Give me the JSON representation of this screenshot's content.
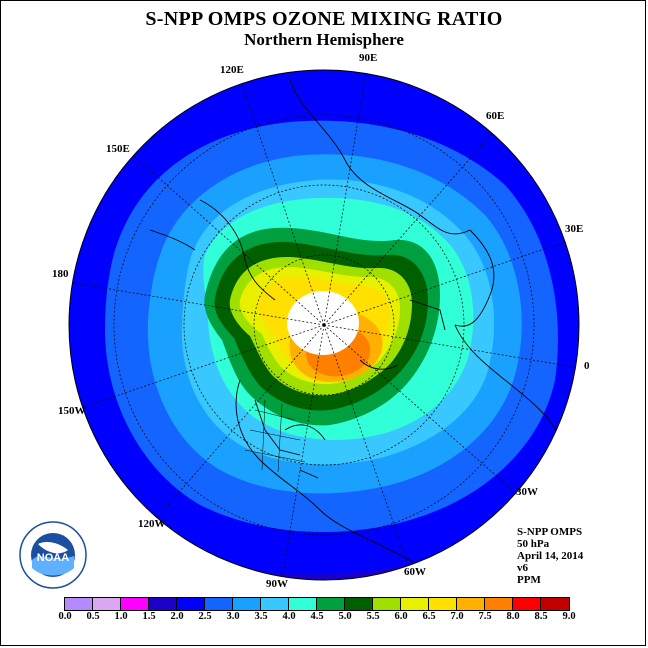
{
  "title": "S-NPP OMPS OZONE MIXING RATIO",
  "subtitle": "Northern Hemisphere",
  "longitude_labels": [
    {
      "label": "90E"
    },
    {
      "label": "60E"
    },
    {
      "label": "30E"
    },
    {
      "label": "0"
    },
    {
      "label": "30W"
    },
    {
      "label": "60W"
    },
    {
      "label": "90W"
    },
    {
      "label": "120W"
    },
    {
      "label": "150W"
    },
    {
      "label": "180"
    },
    {
      "label": "150E"
    },
    {
      "label": "120E"
    }
  ],
  "info": {
    "instrument": "S-NPP OMPS",
    "level": "50 hPa",
    "date": "April 14, 2014",
    "version": "v6",
    "units": "PPM"
  },
  "logo": {
    "text": "NOAA",
    "icon": "noaa-logo-icon"
  },
  "colorbar": {
    "ticks": [
      "0.0",
      "0.5",
      "1.0",
      "1.5",
      "2.0",
      "2.5",
      "3.0",
      "3.5",
      "4.0",
      "4.5",
      "5.0",
      "5.5",
      "6.0",
      "6.5",
      "7.0",
      "7.5",
      "8.0",
      "8.5",
      "9.0"
    ],
    "colors": [
      "#b58aff",
      "#d9a8f0",
      "#ff00ff",
      "#1b00c8",
      "#0000ff",
      "#1464ff",
      "#1aa0ff",
      "#38c8ff",
      "#30ffd8",
      "#00a040",
      "#006000",
      "#a0e000",
      "#e8f000",
      "#ffe000",
      "#ffb000",
      "#ff8000",
      "#ff0000",
      "#c00000",
      "#8b4513"
    ]
  },
  "palette": {
    "ring_1p5": "#1b00c8",
    "ring_2p0": "#0000ff",
    "ring_2p5": "#1464ff",
    "ring_3p0": "#1aa0ff",
    "ring_3p5": "#38c8ff",
    "ring_4p0": "#30ffd8",
    "ring_4p5": "#00a040",
    "ring_5p0": "#006000",
    "ring_5p5": "#a0e000",
    "ring_6p0": "#e8f000",
    "ring_6p5": "#ffe000",
    "ring_7p0": "#ffb000",
    "ring_7p5": "#ff8000",
    "polar_no_data": "#ffffff"
  }
}
